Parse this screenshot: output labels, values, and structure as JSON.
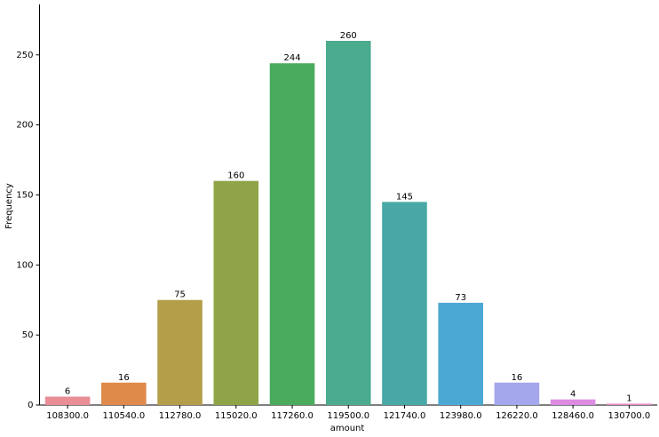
{
  "chart_data": {
    "type": "bar",
    "x_label": "amount",
    "y_label": "Frequency",
    "categories": [
      "108300.0",
      "110540.0",
      "112780.0",
      "115020.0",
      "117260.0",
      "119500.0",
      "121740.0",
      "123980.0",
      "126220.0",
      "128460.0",
      "130700.0"
    ],
    "values": [
      6,
      16,
      75,
      160,
      244,
      260,
      145,
      73,
      16,
      4,
      1
    ],
    "colors": [
      "#e98d97",
      "#de8a4a",
      "#b49e4a",
      "#8ea447",
      "#4aab5d",
      "#4bab8e",
      "#49a8a6",
      "#4ba8d2",
      "#a4a7ec",
      "#dd8ce2",
      "#e88cc4"
    ],
    "ylim": [
      0,
      286
    ],
    "yticks": [
      0,
      50,
      100,
      150,
      200,
      250
    ],
    "grid": false
  }
}
